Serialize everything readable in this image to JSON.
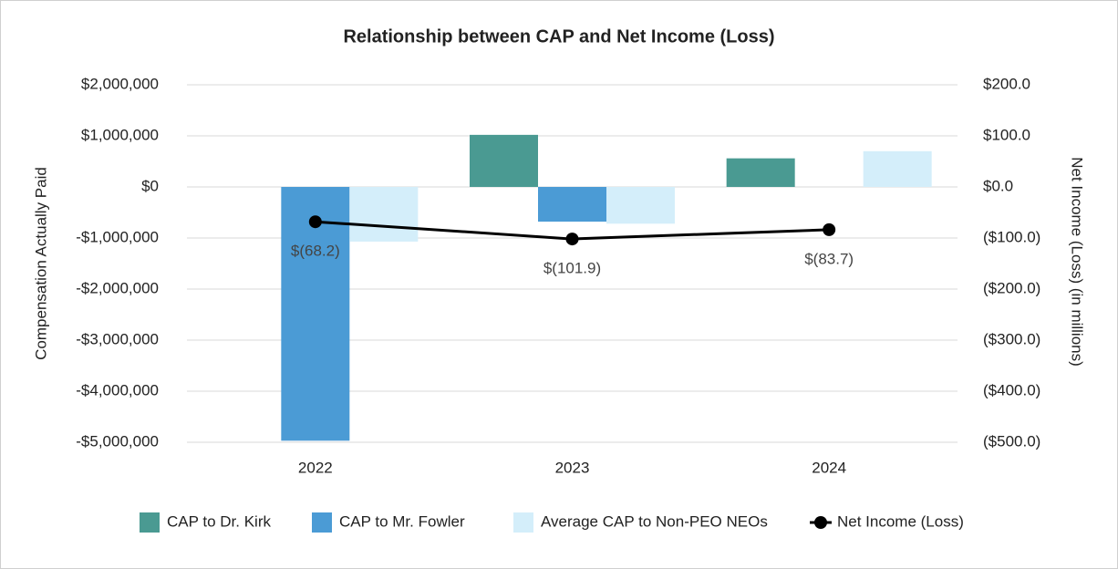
{
  "chart_data": {
    "type": "bar",
    "title": "Relationship between CAP and Net Income (Loss)",
    "y_label": "Compensation Actually Paid",
    "y2_label": "Net Income (Loss) (in millions)",
    "categories": [
      "2022",
      "2023",
      "2024"
    ],
    "series": [
      {
        "name": "CAP to Dr. Kirk",
        "color": "#4a9a92",
        "values": [
          null,
          1020000,
          560000
        ]
      },
      {
        "name": "CAP to Mr. Fowler",
        "color": "#4b9bd5",
        "values": [
          -4970000,
          -680000,
          null
        ]
      },
      {
        "name": "Average CAP to Non-PEO NEOs",
        "color": "#d4eefa",
        "values": [
          -1070000,
          -720000,
          700000
        ]
      },
      {
        "name": "Net Income (Loss)",
        "color": "#000000",
        "axis": "y2",
        "values": [
          -68.2,
          -101.9,
          -83.7
        ],
        "value_labels": [
          "$(68.2)",
          "$(101.9)",
          "$(83.7)"
        ]
      }
    ],
    "ylim": [
      -5000000,
      2000000
    ],
    "yticks": [
      {
        "value": 2000000,
        "label": "$2,000,000"
      },
      {
        "value": 1000000,
        "label": "$1,000,000"
      },
      {
        "value": 0,
        "label": "$0"
      },
      {
        "value": -1000000,
        "label": "-$1,000,000"
      },
      {
        "value": -2000000,
        "label": "-$2,000,000"
      },
      {
        "value": -3000000,
        "label": "-$3,000,000"
      },
      {
        "value": -4000000,
        "label": "-$4,000,000"
      },
      {
        "value": -5000000,
        "label": "-$5,000,000"
      }
    ],
    "y2lim": [
      -500,
      200
    ],
    "y2ticks": [
      {
        "value": 200,
        "label": "$200.0"
      },
      {
        "value": 100,
        "label": "$100.0"
      },
      {
        "value": 0,
        "label": "$0.0"
      },
      {
        "value": -100,
        "label": "($100.0)"
      },
      {
        "value": -200,
        "label": "($200.0)"
      },
      {
        "value": -300,
        "label": "($300.0)"
      },
      {
        "value": -400,
        "label": "($400.0)"
      },
      {
        "value": -500,
        "label": "($500.0)"
      }
    ],
    "grid": true
  }
}
